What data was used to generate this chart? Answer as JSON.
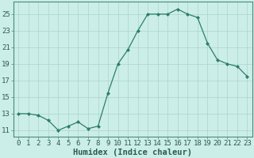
{
  "x": [
    0,
    1,
    2,
    3,
    4,
    5,
    6,
    7,
    8,
    9,
    10,
    11,
    12,
    13,
    14,
    15,
    16,
    17,
    18,
    19,
    20,
    21,
    22,
    23
  ],
  "y": [
    13.0,
    13.0,
    12.8,
    12.2,
    11.0,
    11.5,
    12.0,
    11.2,
    11.5,
    15.5,
    19.0,
    20.7,
    23.0,
    25.0,
    25.0,
    25.0,
    25.6,
    25.0,
    24.6,
    21.5,
    19.5,
    19.0,
    18.7,
    17.5
  ],
  "line_color": "#2d7d6d",
  "marker_color": "#2d7d6d",
  "bg_color": "#cceee8",
  "grid_color": "#aad4cc",
  "xlabel": "Humidex (Indice chaleur)",
  "ylabel_ticks": [
    11,
    13,
    15,
    17,
    19,
    21,
    23,
    25
  ],
  "xlim": [
    -0.5,
    23.5
  ],
  "ylim": [
    10.2,
    26.5
  ],
  "xticks": [
    0,
    1,
    2,
    3,
    4,
    5,
    6,
    7,
    8,
    9,
    10,
    11,
    12,
    13,
    14,
    15,
    16,
    17,
    18,
    19,
    20,
    21,
    22,
    23
  ],
  "tick_fontsize": 6.5,
  "label_fontsize": 7.5
}
